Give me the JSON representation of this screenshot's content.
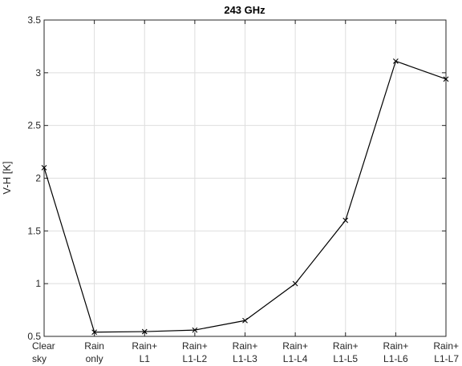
{
  "chart_data": {
    "type": "line",
    "title": "243 GHz",
    "xlabel": "",
    "ylabel": "V-H [K]",
    "categories": [
      [
        "Clear",
        "sky"
      ],
      [
        "Rain",
        "only"
      ],
      [
        "Rain+",
        "L1"
      ],
      [
        "Rain+",
        "L1-L2"
      ],
      [
        "Rain+",
        "L1-L3"
      ],
      [
        "Rain+",
        "L1-L4"
      ],
      [
        "Rain+",
        "L1-L5"
      ],
      [
        "Rain+",
        "L1-L6"
      ],
      [
        "Rain+",
        "L1-L7"
      ]
    ],
    "values": [
      2.1,
      0.54,
      0.545,
      0.56,
      0.65,
      1.0,
      1.6,
      3.11,
      2.94
    ],
    "ylim": [
      0.5,
      3.5
    ],
    "yticks": [
      "0.5",
      "1",
      "1.5",
      "2",
      "2.5",
      "3",
      "3.5"
    ],
    "grid": true,
    "marker": "x",
    "colors": {
      "line": "#000000",
      "grid": "#dedede",
      "axis": "#262626"
    }
  }
}
